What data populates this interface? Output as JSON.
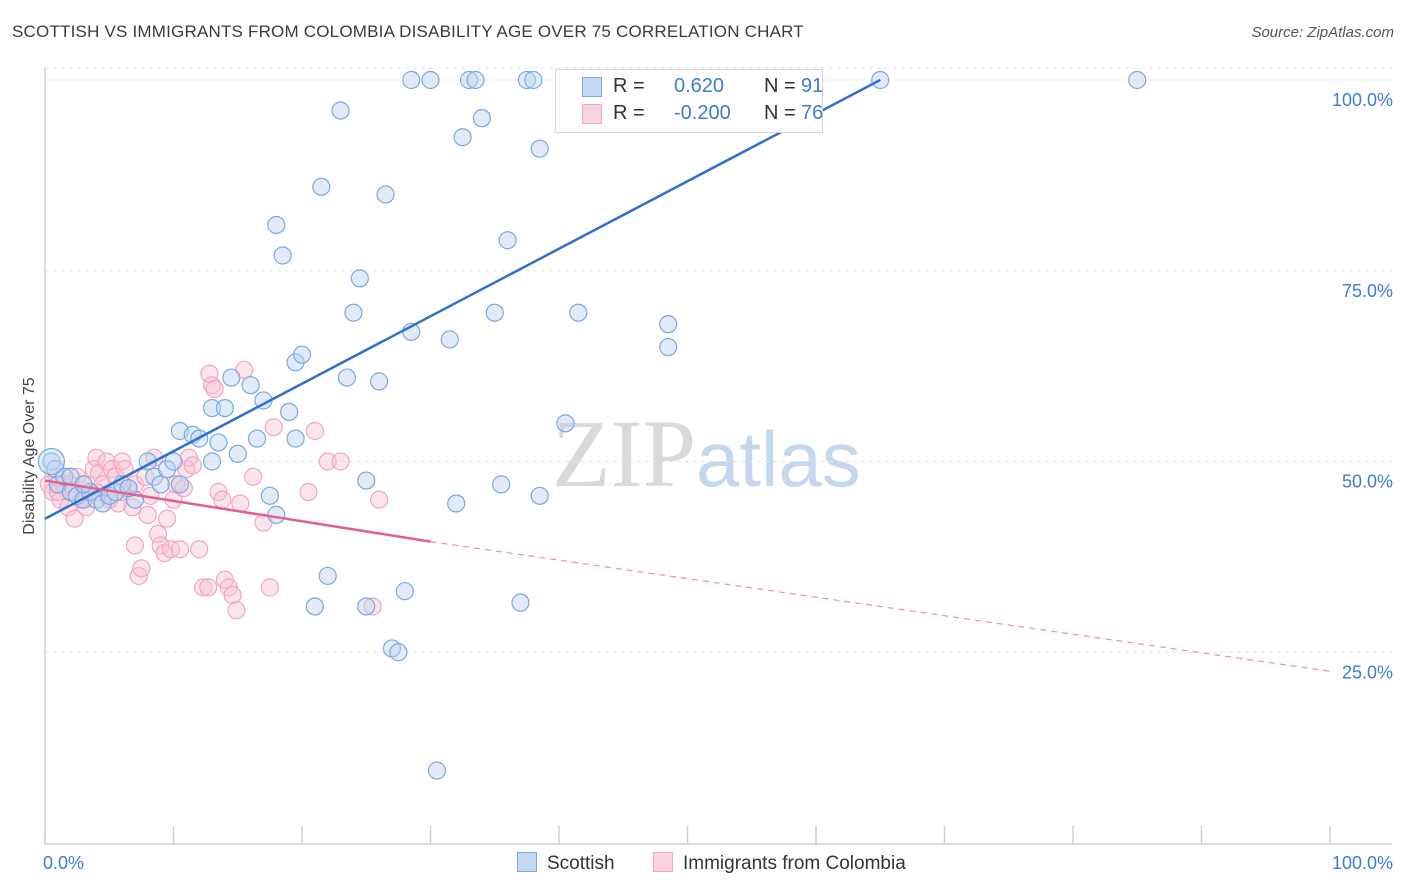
{
  "header": {
    "title": "SCOTTISH VS IMMIGRANTS FROM COLOMBIA DISABILITY AGE OVER 75 CORRELATION CHART",
    "source": "Source: ZipAtlas.com"
  },
  "watermark": {
    "zip": "ZIP",
    "atlas": "atlas"
  },
  "legend": {
    "rows": [
      {
        "r_label": "R =",
        "r_value": "0.620",
        "n_label": "N =",
        "n_value": "91"
      },
      {
        "r_label": "R =",
        "r_value": "-0.200",
        "n_label": "N =",
        "n_value": "76"
      }
    ]
  },
  "bottom_legend": {
    "series1": "Scottish",
    "series2": "Immigrants from Colombia"
  },
  "chart_data": {
    "type": "scatter",
    "title": "SCOTTISH VS IMMIGRANTS FROM COLOMBIA DISABILITY AGE OVER 75 CORRELATION CHART",
    "xlabel": "",
    "ylabel": "Disability Age Over 75",
    "xlim": [
      0,
      100
    ],
    "ylim": [
      0,
      100
    ],
    "x_tick_labels": [
      "0.0%",
      "100.0%"
    ],
    "y_tick_labels": [
      "100.0%",
      "75.0%",
      "50.0%",
      "25.0%"
    ],
    "y_ticks": [
      100,
      75,
      50,
      25
    ],
    "grid": true,
    "colors": {
      "scottish": "#7aa8e0",
      "scottish_line": "#2f70cc",
      "colombia": "#f2a6c0",
      "colombia_line": "#e35f90",
      "tick": "#3d7bd4"
    },
    "series": [
      {
        "name": "Scottish",
        "r": 0.62,
        "n": 91,
        "trend": {
          "x": [
            0,
            65
          ],
          "y": [
            42.5,
            100
          ]
        },
        "points": [
          [
            0.5,
            50
          ],
          [
            0.8,
            49
          ],
          [
            1,
            47
          ],
          [
            1.5,
            48
          ],
          [
            2,
            46
          ],
          [
            2.5,
            45.5
          ],
          [
            3,
            45
          ],
          [
            3.5,
            46
          ],
          [
            4,
            45
          ],
          [
            4.5,
            44.5
          ],
          [
            5,
            45.5
          ],
          [
            5.5,
            46
          ],
          [
            6,
            47
          ],
          [
            7,
            45
          ],
          [
            8,
            50
          ],
          [
            8.5,
            48
          ],
          [
            9,
            47
          ],
          [
            9.5,
            49
          ],
          [
            10,
            50
          ],
          [
            10.5,
            47
          ],
          [
            10.5,
            54
          ],
          [
            11.5,
            53.5
          ],
          [
            12,
            53
          ],
          [
            13,
            57
          ],
          [
            13,
            50
          ],
          [
            13.5,
            52.5
          ],
          [
            14,
            57
          ],
          [
            14.5,
            61
          ],
          [
            15,
            51
          ],
          [
            16,
            60
          ],
          [
            16.5,
            53
          ],
          [
            17,
            58
          ],
          [
            17.5,
            45.5
          ],
          [
            18,
            43
          ],
          [
            18,
            81
          ],
          [
            18.5,
            77
          ],
          [
            19,
            56.5
          ],
          [
            19.5,
            53
          ],
          [
            19.5,
            63
          ],
          [
            20,
            64
          ],
          [
            21,
            31
          ],
          [
            21.5,
            86
          ],
          [
            22,
            35
          ],
          [
            23,
            96
          ],
          [
            23.5,
            61
          ],
          [
            24,
            69.5
          ],
          [
            24.5,
            74
          ],
          [
            25,
            31
          ],
          [
            25,
            47.5
          ],
          [
            26,
            60.5
          ],
          [
            26.5,
            85
          ],
          [
            27,
            25.5
          ],
          [
            27.5,
            25
          ],
          [
            28,
            33
          ],
          [
            28.5,
            100
          ],
          [
            30,
            100
          ],
          [
            30.5,
            9.5
          ],
          [
            28.5,
            67
          ],
          [
            31.5,
            66
          ],
          [
            32,
            44.5
          ],
          [
            32.5,
            92.5
          ],
          [
            33,
            100
          ],
          [
            33.5,
            100
          ],
          [
            34,
            95
          ],
          [
            35,
            69.5
          ],
          [
            35.5,
            47
          ],
          [
            36,
            79
          ],
          [
            37,
            31.5
          ],
          [
            37.5,
            100
          ],
          [
            38,
            100
          ],
          [
            38.5,
            91
          ],
          [
            38.5,
            45.5
          ],
          [
            40.5,
            55
          ],
          [
            40.5,
            100
          ],
          [
            41,
            100
          ],
          [
            41.5,
            69.5
          ],
          [
            43.5,
            100
          ],
          [
            44,
            100
          ],
          [
            45.5,
            100
          ],
          [
            47,
            100
          ],
          [
            48.5,
            68
          ],
          [
            48.5,
            65
          ],
          [
            51,
            100
          ],
          [
            52,
            100
          ],
          [
            57,
            100
          ],
          [
            59,
            100
          ],
          [
            65,
            100
          ],
          [
            85,
            100
          ],
          [
            2,
            48
          ],
          [
            3,
            47
          ],
          [
            6.5,
            46.5
          ]
        ]
      },
      {
        "name": "Immigrants from Colombia",
        "r": -0.2,
        "n": 76,
        "trend": {
          "x": [
            0,
            30
          ],
          "y": [
            47.5,
            39.5
          ]
        },
        "trend_dashed": {
          "x": [
            30,
            100
          ],
          "y": [
            39.5,
            22.5
          ]
        },
        "points": [
          [
            0.3,
            47
          ],
          [
            0.6,
            46
          ],
          [
            0.9,
            48
          ],
          [
            1.2,
            45
          ],
          [
            1.5,
            47
          ],
          [
            1.8,
            44
          ],
          [
            2,
            46
          ],
          [
            2.3,
            42.5
          ],
          [
            2.5,
            48
          ],
          [
            2.8,
            45
          ],
          [
            3,
            47
          ],
          [
            3.2,
            44
          ],
          [
            3.5,
            46
          ],
          [
            3.8,
            49
          ],
          [
            4,
            50.5
          ],
          [
            4.2,
            48.5
          ],
          [
            4.5,
            47
          ],
          [
            4.8,
            50
          ],
          [
            5,
            45
          ],
          [
            5.2,
            49
          ],
          [
            5.5,
            48
          ],
          [
            5.7,
            44.5
          ],
          [
            6,
            50
          ],
          [
            6.2,
            49
          ],
          [
            6.5,
            46.5
          ],
          [
            6.8,
            44
          ],
          [
            7,
            47
          ],
          [
            7,
            39
          ],
          [
            7.3,
            35
          ],
          [
            7.5,
            36
          ],
          [
            7.8,
            48
          ],
          [
            8,
            43
          ],
          [
            8.2,
            45.5
          ],
          [
            8.5,
            50.5
          ],
          [
            8.8,
            40.5
          ],
          [
            9,
            39
          ],
          [
            9.3,
            38
          ],
          [
            9.5,
            42.5
          ],
          [
            9.8,
            38.5
          ],
          [
            10,
            45
          ],
          [
            10.2,
            47
          ],
          [
            10.5,
            38.5
          ],
          [
            10.8,
            46.5
          ],
          [
            11,
            49
          ],
          [
            11.2,
            50.5
          ],
          [
            11.5,
            49.5
          ],
          [
            12,
            38.5
          ],
          [
            12.3,
            33.5
          ],
          [
            12.7,
            33.5
          ],
          [
            13,
            60
          ],
          [
            13.2,
            59.5
          ],
          [
            13.5,
            46
          ],
          [
            13.8,
            45
          ],
          [
            14,
            34.5
          ],
          [
            14.3,
            33.5
          ],
          [
            14.6,
            32.5
          ],
          [
            14.9,
            30.5
          ],
          [
            15.2,
            44.5
          ],
          [
            15.5,
            62
          ],
          [
            16.2,
            48
          ],
          [
            17,
            42
          ],
          [
            17.5,
            33.5
          ],
          [
            17.8,
            54.5
          ],
          [
            20.5,
            46
          ],
          [
            21,
            54
          ],
          [
            22,
            50
          ],
          [
            23,
            50
          ],
          [
            25.5,
            31
          ],
          [
            26,
            45
          ],
          [
            12.8,
            61.5
          ],
          [
            1,
            46
          ],
          [
            2,
            47
          ],
          [
            3,
            45
          ],
          [
            4,
            46
          ],
          [
            5,
            45
          ],
          [
            6,
            46
          ]
        ]
      }
    ]
  }
}
